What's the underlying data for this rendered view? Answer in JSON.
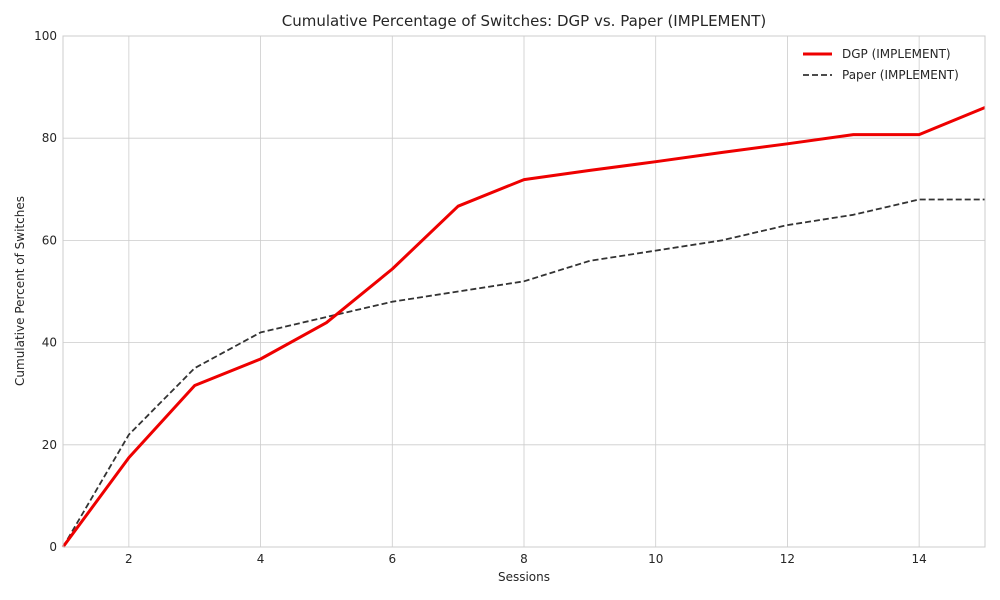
{
  "chart_data": {
    "type": "line",
    "title": "Cumulative Percentage of Switches: DGP vs. Paper (IMPLEMENT)",
    "xlabel": "Sessions",
    "ylabel": "Cumulative Percent of Switches",
    "xlim": [
      1,
      15
    ],
    "ylim": [
      0,
      100
    ],
    "xticks": [
      2,
      4,
      6,
      8,
      10,
      12,
      14
    ],
    "yticks": [
      0,
      20,
      40,
      60,
      80,
      100
    ],
    "grid": true,
    "legend_position": "top-right",
    "x": [
      1,
      2,
      3,
      4,
      5,
      6,
      7,
      8,
      9,
      10,
      11,
      12,
      13,
      14,
      15
    ],
    "series": [
      {
        "name": "DGP (IMPLEMENT)",
        "values": [
          0,
          17.5,
          31.6,
          36.8,
          43.9,
          54.4,
          66.7,
          71.9,
          73.7,
          75.4,
          77.2,
          78.9,
          80.7,
          80.7,
          86.0
        ],
        "color": "#ee0000",
        "style": "solid"
      },
      {
        "name": "Paper (IMPLEMENT)",
        "values": [
          0,
          22,
          35,
          42,
          45,
          48,
          50,
          52,
          56,
          58,
          60,
          63,
          65,
          68,
          68
        ],
        "color": "#333333",
        "style": "dashed"
      }
    ]
  }
}
